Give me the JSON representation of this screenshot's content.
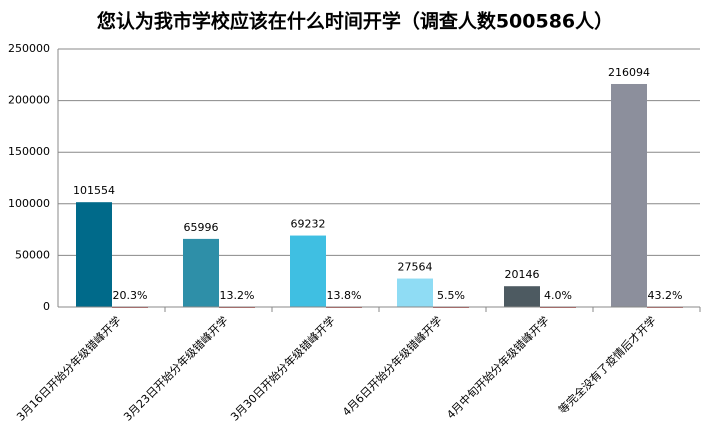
{
  "chart_data": {
    "type": "bar",
    "title": "您认为我市学校应该在什么时间开学（调查人数500586人）",
    "categories": [
      "3月16日开始分年级错峰开学",
      "3月23日开始分年级错峰开学",
      "3月30日开始分年级错峰开学",
      "4月6日开始分年级错峰开学",
      "4月中旬开始分年级错峰开学",
      "等完全没有了疫情后才开学"
    ],
    "series": [
      {
        "colors": [
          "#006a8a",
          "#2e8fa8",
          "#3fbfe2",
          "#8fdcf4",
          "#4d5a61",
          "#8c8f9c"
        ],
        "values": [
          101554,
          65996,
          69232,
          27564,
          20146,
          216094
        ]
      },
      {
        "color": "#c0504d",
        "values": [
          20.3,
          13.2,
          13.8,
          5.5,
          4.0,
          43.2
        ],
        "value_labels": [
          "20.3%",
          "13.2%",
          "13.8%",
          "5.5%",
          "4.0%",
          "43.2%"
        ]
      }
    ],
    "ylim": [
      0,
      250000
    ],
    "yticks": [
      0,
      50000,
      100000,
      150000,
      200000,
      250000
    ],
    "grid": true
  }
}
